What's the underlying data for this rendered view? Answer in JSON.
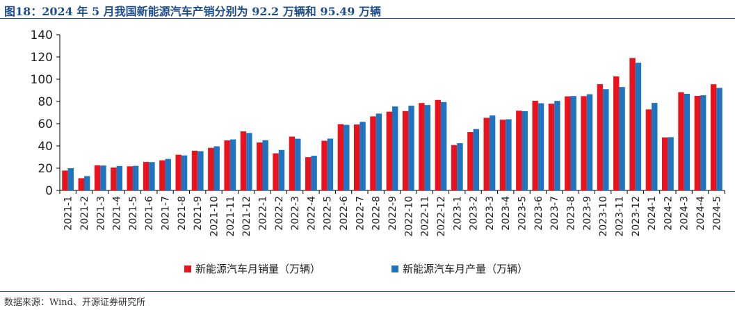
{
  "title": "图18：2024 年 5 月我国新能源汽车产销分别为 92.2 万辆和 95.49 万辆",
  "source": "数据来源：Wind、开源证券研究所",
  "chart_data": {
    "type": "bar",
    "ylim": [
      0,
      140
    ],
    "yticks": [
      0,
      20,
      40,
      60,
      80,
      100,
      120,
      140
    ],
    "grid": false,
    "legend_position": "bottom",
    "categories": [
      "2021-1",
      "2021-2",
      "2021-3",
      "2021-4",
      "2021-5",
      "2021-6",
      "2021-7",
      "2021-8",
      "2021-9",
      "2021-10",
      "2021-11",
      "2021-12",
      "2022-1",
      "2022-2",
      "2022-3",
      "2022-4",
      "2022-5",
      "2022-6",
      "2022-7",
      "2022-8",
      "2022-9",
      "2022-10",
      "2022-11",
      "2022-12",
      "2023-1",
      "2023-2",
      "2023-3",
      "2023-4",
      "2023-5",
      "2023-6",
      "2023-7",
      "2023-8",
      "2023-9",
      "2023-10",
      "2023-11",
      "2023-12",
      "2024-1",
      "2024-2",
      "2024-3",
      "2024-4",
      "2024-5"
    ],
    "series": [
      {
        "name": "新能源汽车月销量（万辆）",
        "color": "#e8131c",
        "values": [
          17.9,
          11.0,
          22.6,
          20.6,
          21.7,
          25.6,
          27.1,
          32.1,
          35.7,
          38.3,
          45.0,
          53.1,
          43.1,
          33.4,
          48.4,
          29.9,
          44.7,
          59.6,
          59.3,
          66.6,
          70.8,
          71.4,
          78.6,
          81.4,
          40.8,
          52.5,
          65.3,
          63.6,
          71.7,
          80.6,
          78.0,
          84.6,
          84.8,
          95.6,
          102.6,
          119.1,
          72.9,
          47.7,
          88.3,
          85.0,
          95.49
        ]
      },
      {
        "name": "新能源汽车月产量（万辆）",
        "color": "#1e74c1",
        "values": [
          20.0,
          12.9,
          22.4,
          22.0,
          22.1,
          25.5,
          28.3,
          31.5,
          35.3,
          39.7,
          45.9,
          51.7,
          45.2,
          36.4,
          46.5,
          31.2,
          46.6,
          59.0,
          61.7,
          69.1,
          75.5,
          76.2,
          76.8,
          79.5,
          42.5,
          55.2,
          67.4,
          64.0,
          71.3,
          78.4,
          80.5,
          84.9,
          86.5,
          91.1,
          93.0,
          114.8,
          78.7,
          47.9,
          86.9,
          85.6,
          92.2
        ]
      }
    ]
  }
}
